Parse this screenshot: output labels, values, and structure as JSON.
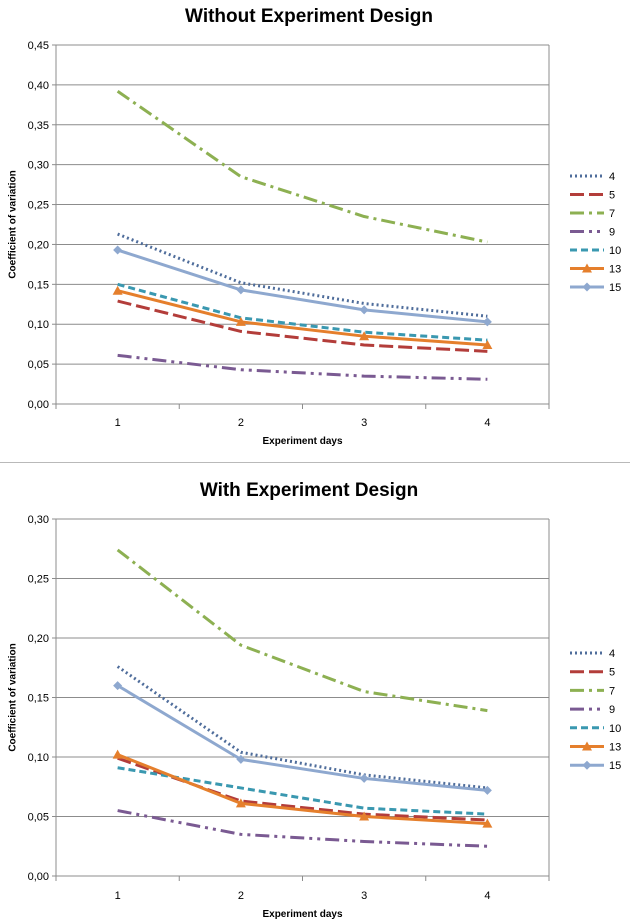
{
  "colors": {
    "4": "#4f6d9b",
    "5": "#b33d3a",
    "7": "#8db052",
    "9": "#7a5a92",
    "10": "#3a98b0",
    "13": "#e57f2c",
    "15": "#8ea8cf",
    "grid": "#8c8c8c",
    "axis": "#8c8c8c",
    "text": "#000000"
  },
  "chart_data": [
    {
      "type": "line",
      "title": "Without Experiment Design",
      "xlabel": "Experiment days",
      "ylabel": "Coefficient of variation",
      "categories": [
        "1",
        "2",
        "3",
        "4"
      ],
      "ylim": [
        0,
        0.45
      ],
      "yticks": [
        "0,00",
        "0,05",
        "0,10",
        "0,15",
        "0,20",
        "0,25",
        "0,30",
        "0,35",
        "0,40",
        "0,45"
      ],
      "grid": true,
      "legend_position": "right",
      "series": [
        {
          "name": "4",
          "values": [
            0.213,
            0.152,
            0.126,
            0.11
          ],
          "style": "dot",
          "color": "#4f6d9b"
        },
        {
          "name": "5",
          "values": [
            0.129,
            0.091,
            0.074,
            0.066
          ],
          "style": "dash",
          "color": "#b33d3a"
        },
        {
          "name": "7",
          "values": [
            0.392,
            0.285,
            0.235,
            0.203
          ],
          "style": "dashdot",
          "color": "#8db052"
        },
        {
          "name": "9",
          "values": [
            0.061,
            0.043,
            0.035,
            0.031
          ],
          "style": "dashdotdot",
          "color": "#7a5a92"
        },
        {
          "name": "10",
          "values": [
            0.15,
            0.108,
            0.09,
            0.08
          ],
          "style": "shortdash",
          "color": "#3a98b0"
        },
        {
          "name": "13",
          "values": [
            0.142,
            0.103,
            0.085,
            0.074
          ],
          "style": "triangle",
          "color": "#e57f2c"
        },
        {
          "name": "15",
          "values": [
            0.193,
            0.143,
            0.118,
            0.103
          ],
          "style": "diamond",
          "color": "#8ea8cf"
        }
      ]
    },
    {
      "type": "line",
      "title": "With Experiment Design",
      "xlabel": "Experiment days",
      "ylabel": "Coefficient of variation",
      "categories": [
        "1",
        "2",
        "3",
        "4"
      ],
      "ylim": [
        0,
        0.3
      ],
      "yticks": [
        "0,00",
        "0,05",
        "0,10",
        "0,15",
        "0,20",
        "0,25",
        "0,30"
      ],
      "grid": true,
      "legend_position": "right",
      "series": [
        {
          "name": "4",
          "values": [
            0.176,
            0.104,
            0.085,
            0.074
          ],
          "style": "dot",
          "color": "#4f6d9b"
        },
        {
          "name": "5",
          "values": [
            0.099,
            0.063,
            0.052,
            0.047
          ],
          "style": "dash",
          "color": "#b33d3a"
        },
        {
          "name": "7",
          "values": [
            0.274,
            0.194,
            0.155,
            0.139
          ],
          "style": "dashdot",
          "color": "#8db052"
        },
        {
          "name": "9",
          "values": [
            0.055,
            0.035,
            0.029,
            0.025
          ],
          "style": "dashdotdot",
          "color": "#7a5a92"
        },
        {
          "name": "10",
          "values": [
            0.091,
            0.074,
            0.057,
            0.052
          ],
          "style": "shortdash",
          "color": "#3a98b0"
        },
        {
          "name": "13",
          "values": [
            0.102,
            0.061,
            0.05,
            0.044
          ],
          "style": "triangle",
          "color": "#e57f2c"
        },
        {
          "name": "15",
          "values": [
            0.16,
            0.098,
            0.082,
            0.072
          ],
          "style": "diamond",
          "color": "#8ea8cf"
        }
      ]
    }
  ]
}
